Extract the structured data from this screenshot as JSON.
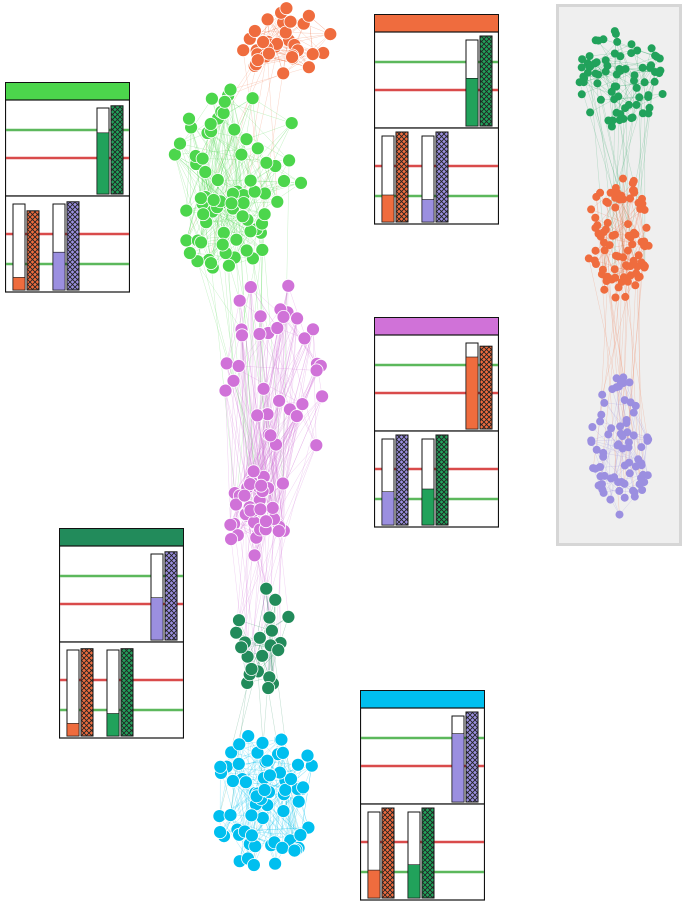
{
  "colors": {
    "community_green": "#4cd64c",
    "community_orange": "#ef6c3e",
    "community_purple": "#d072d8",
    "community_darkgreen": "#228b5b",
    "community_cyan": "#00bfef",
    "overview_green": "#21a25b",
    "overview_orange": "#ef6c3e",
    "overview_purple": "#9b8fe0",
    "bar_orange": "#ef6c3e",
    "bar_purple": "#9b8fe0",
    "bar_green": "#21a25b",
    "line_red": "#d94b4b",
    "line_green": "#5cb85c"
  },
  "communities": [
    {
      "key": "orange",
      "color": "#ef6c3e",
      "node_count": 38
    },
    {
      "key": "green",
      "color": "#4cd64c",
      "node_count": 78
    },
    {
      "key": "purple",
      "color": "#d072d8",
      "node_count": 74
    },
    {
      "key": "darkgreen",
      "color": "#228b5b",
      "node_count": 22
    },
    {
      "key": "cyan",
      "color": "#00bfef",
      "node_count": 66
    }
  ],
  "overview": {
    "clusters": [
      {
        "key": "green",
        "color": "#21a25b",
        "node_count": 78
      },
      {
        "key": "orange",
        "color": "#ef6c3e",
        "node_count": 90
      },
      {
        "key": "purple",
        "color": "#9b8fe0",
        "node_count": 76
      }
    ]
  },
  "glyph_cards": [
    {
      "key": "green",
      "header_color": "#4cd64c",
      "top": {
        "bars": [
          {
            "color": "#21a25b",
            "fill": 0.68,
            "hatch": 0.98
          }
        ]
      },
      "bottom": {
        "bars": [
          {
            "color": "#ef6c3e",
            "fill": 0.14,
            "hatch": 0.88
          },
          {
            "color": "#9b8fe0",
            "fill": 0.42,
            "hatch": 0.98
          }
        ]
      }
    },
    {
      "key": "orange",
      "header_color": "#ef6c3e",
      "top": {
        "bars": [
          {
            "color": "#21a25b",
            "fill": 0.53,
            "hatch": 1.0
          }
        ]
      },
      "bottom": {
        "bars": [
          {
            "color": "#ef6c3e",
            "fill": 0.3,
            "hatch": 1.0
          },
          {
            "color": "#9b8fe0",
            "fill": 0.25,
            "hatch": 1.0
          }
        ]
      }
    },
    {
      "key": "purple",
      "header_color": "#d072d8",
      "top": {
        "bars": [
          {
            "color": "#ef6c3e",
            "fill": 0.8,
            "hatch": 0.92
          }
        ]
      },
      "bottom": {
        "bars": [
          {
            "color": "#9b8fe0",
            "fill": 0.37,
            "hatch": 1.0
          },
          {
            "color": "#21a25b",
            "fill": 0.4,
            "hatch": 1.0
          }
        ]
      }
    },
    {
      "key": "darkgreen",
      "header_color": "#228b5b",
      "top": {
        "bars": [
          {
            "color": "#9b8fe0",
            "fill": 0.47,
            "hatch": 0.98
          }
        ]
      },
      "bottom": {
        "bars": [
          {
            "color": "#ef6c3e",
            "fill": 0.14,
            "hatch": 0.97
          },
          {
            "color": "#21a25b",
            "fill": 0.25,
            "hatch": 0.97
          }
        ]
      }
    },
    {
      "key": "cyan",
      "header_color": "#00bfef",
      "top": {
        "bars": [
          {
            "color": "#9b8fe0",
            "fill": 0.76,
            "hatch": 1.0
          }
        ]
      },
      "bottom": {
        "bars": [
          {
            "color": "#ef6c3e",
            "fill": 0.31,
            "hatch": 1.0
          },
          {
            "color": "#21a25b",
            "fill": 0.37,
            "hatch": 1.0
          }
        ]
      }
    }
  ]
}
